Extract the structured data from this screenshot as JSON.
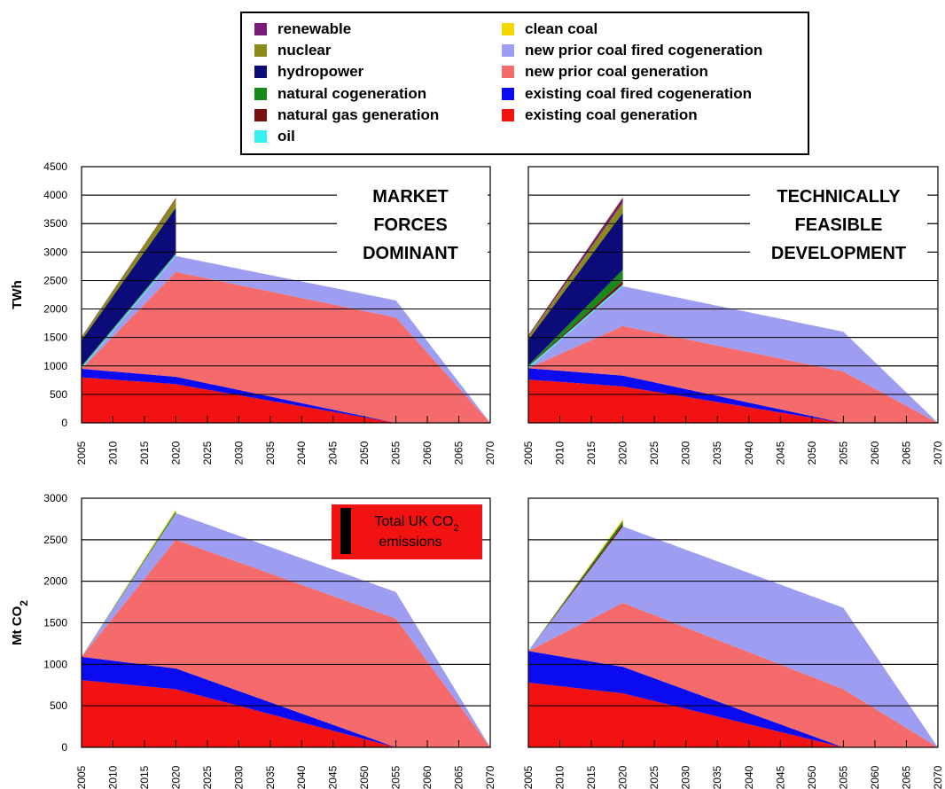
{
  "colors": {
    "renewable": "#7a1a7a",
    "nuclear": "#8b8b1a",
    "hydropower": "#0b0b7a",
    "natural_cogeneration": "#178a17",
    "natural_gas_generation": "#7a1010",
    "oil": "#36f2f2",
    "clean_coal": "#f5d700",
    "new_prior_coal_fired_cogeneration": "#9d9df2",
    "new_prior_coal_generation": "#f56b6b",
    "existing_coal_fired_cogeneration": "#0b0bf2",
    "existing_coal_generation": "#f21212",
    "total_emissions_marker": "#000000",
    "annotation_box": "#f21212"
  },
  "legend": {
    "left": [
      {
        "key": "renewable",
        "label": "renewable"
      },
      {
        "key": "nuclear",
        "label": "nuclear"
      },
      {
        "key": "hydropower",
        "label": "hydropower"
      },
      {
        "key": "natural_cogeneration",
        "label": "natural cogeneration"
      },
      {
        "key": "natural_gas_generation",
        "label": "natural gas generation"
      },
      {
        "key": "oil",
        "label": "oil"
      }
    ],
    "right": [
      {
        "key": "clean_coal",
        "label": "clean coal"
      },
      {
        "key": "new_prior_coal_fired_cogeneration",
        "label": "new prior coal fired cogeneration"
      },
      {
        "key": "new_prior_coal_generation",
        "label": "new prior coal generation"
      },
      {
        "key": "existing_coal_fired_cogeneration",
        "label": "existing coal fired cogeneration"
      },
      {
        "key": "existing_coal_generation",
        "label": "existing coal generation"
      }
    ]
  },
  "annotations": {
    "market_lines": [
      "MARKET",
      "FORCES",
      "DOMINANT"
    ],
    "technical_lines": [
      "TECHNICALLY",
      "FEASIBLE",
      "DEVELOPMENT"
    ],
    "co2_box_line1": "Total UK CO",
    "co2_box_sub": "2",
    "co2_box_line2": "emissions"
  },
  "chart_data": [
    {
      "type": "area",
      "stacked": true,
      "panel": "market-forces-twh",
      "ylabel": "TWh",
      "ylim": [
        0,
        4500
      ],
      "yticks": [
        0,
        500,
        1000,
        1500,
        2000,
        2500,
        3000,
        3500,
        4000,
        4500
      ],
      "x": [
        2005,
        2010,
        2015,
        2020,
        2025,
        2030,
        2035,
        2040,
        2045,
        2050,
        2055,
        2060,
        2065,
        2070
      ],
      "series": [
        {
          "key": "existing_coal_generation",
          "x": [
            2005,
            2020,
            2055
          ],
          "values": [
            800,
            680,
            0
          ]
        },
        {
          "key": "existing_coal_fired_cogeneration",
          "x": [
            2005,
            2020,
            2055
          ],
          "values": [
            150,
            130,
            0
          ]
        },
        {
          "key": "new_prior_coal_generation",
          "x": [
            2005,
            2020,
            2055,
            2070
          ],
          "values": [
            0,
            1840,
            1850,
            0
          ]
        },
        {
          "key": "new_prior_coal_fired_cogeneration",
          "x": [
            2005,
            2020,
            2055,
            2070
          ],
          "values": [
            0,
            280,
            300,
            0
          ]
        },
        {
          "key": "oil",
          "x": [
            2005,
            2020
          ],
          "values": [
            30,
            30
          ]
        },
        {
          "key": "natural_gas_generation",
          "x": [
            2005,
            2020
          ],
          "values": [
            10,
            10
          ]
        },
        {
          "key": "natural_cogeneration",
          "x": [
            2005,
            2020
          ],
          "values": [
            10,
            10
          ]
        },
        {
          "key": "hydropower",
          "x": [
            2005,
            2020
          ],
          "values": [
            450,
            800
          ]
        },
        {
          "key": "nuclear",
          "x": [
            2005,
            2020
          ],
          "values": [
            50,
            150
          ]
        },
        {
          "key": "renewable",
          "x": [
            2005,
            2020
          ],
          "values": [
            10,
            20
          ]
        },
        {
          "key": "clean_coal",
          "x": [
            2005,
            2020
          ],
          "values": [
            0,
            10
          ]
        }
      ]
    },
    {
      "type": "area",
      "stacked": true,
      "panel": "technically-feasible-twh",
      "ylabel": "",
      "ylim": [
        0,
        4500
      ],
      "yticks": [],
      "x": [
        2005,
        2010,
        2015,
        2020,
        2025,
        2030,
        2035,
        2040,
        2045,
        2050,
        2055,
        2060,
        2065,
        2070
      ],
      "series": [
        {
          "key": "existing_coal_generation",
          "x": [
            2005,
            2020,
            2055
          ],
          "values": [
            760,
            640,
            0
          ]
        },
        {
          "key": "existing_coal_fired_cogeneration",
          "x": [
            2005,
            2020,
            2055
          ],
          "values": [
            200,
            190,
            0
          ]
        },
        {
          "key": "new_prior_coal_generation",
          "x": [
            2005,
            2020,
            2055,
            2070
          ],
          "values": [
            0,
            870,
            900,
            0
          ]
        },
        {
          "key": "new_prior_coal_fired_cogeneration",
          "x": [
            2005,
            2020,
            2055,
            2070
          ],
          "values": [
            0,
            700,
            700,
            0
          ]
        },
        {
          "key": "oil",
          "x": [
            2005,
            2020
          ],
          "values": [
            30,
            30
          ]
        },
        {
          "key": "natural_gas_generation",
          "x": [
            2005,
            2020
          ],
          "values": [
            10,
            60
          ]
        },
        {
          "key": "natural_cogeneration",
          "x": [
            2005,
            2020
          ],
          "values": [
            10,
            200
          ]
        },
        {
          "key": "hydropower",
          "x": [
            2005,
            2020
          ],
          "values": [
            450,
            1000
          ]
        },
        {
          "key": "nuclear",
          "x": [
            2005,
            2020
          ],
          "values": [
            60,
            180
          ]
        },
        {
          "key": "renewable",
          "x": [
            2005,
            2020
          ],
          "values": [
            20,
            90
          ]
        },
        {
          "key": "clean_coal",
          "x": [
            2005,
            2020
          ],
          "values": [
            0,
            10
          ]
        }
      ]
    },
    {
      "type": "area",
      "stacked": true,
      "panel": "market-forces-co2",
      "ylabel": "Mt CO",
      "ylabel_sub": "2",
      "ylim": [
        0,
        3000
      ],
      "yticks": [
        0,
        500,
        1000,
        1500,
        2000,
        2500,
        3000
      ],
      "x": [
        2005,
        2010,
        2015,
        2020,
        2025,
        2030,
        2035,
        2040,
        2045,
        2050,
        2055,
        2060,
        2065,
        2070
      ],
      "series": [
        {
          "key": "existing_coal_generation",
          "x": [
            2005,
            2020,
            2055
          ],
          "values": [
            810,
            700,
            0
          ]
        },
        {
          "key": "existing_coal_fired_cogeneration",
          "x": [
            2005,
            2020,
            2055
          ],
          "values": [
            280,
            250,
            0
          ]
        },
        {
          "key": "new_prior_coal_generation",
          "x": [
            2005,
            2020,
            2055,
            2070
          ],
          "values": [
            0,
            1550,
            1550,
            0
          ]
        },
        {
          "key": "new_prior_coal_fired_cogeneration",
          "x": [
            2005,
            2020,
            2055,
            2070
          ],
          "values": [
            0,
            320,
            320,
            0
          ]
        },
        {
          "key": "natural_cogeneration",
          "x": [
            2005,
            2020
          ],
          "values": [
            0,
            25
          ]
        },
        {
          "key": "clean_coal",
          "x": [
            2005,
            2020
          ],
          "values": [
            0,
            20
          ]
        }
      ]
    },
    {
      "type": "area",
      "stacked": true,
      "panel": "technically-feasible-co2",
      "ylabel": "",
      "ylim": [
        0,
        3000
      ],
      "yticks": [],
      "x": [
        2005,
        2010,
        2015,
        2020,
        2025,
        2030,
        2035,
        2040,
        2045,
        2050,
        2055,
        2060,
        2065,
        2070
      ],
      "series": [
        {
          "key": "existing_coal_generation",
          "x": [
            2005,
            2020,
            2055
          ],
          "values": [
            780,
            650,
            0
          ]
        },
        {
          "key": "existing_coal_fired_cogeneration",
          "x": [
            2005,
            2020,
            2055
          ],
          "values": [
            380,
            320,
            0
          ]
        },
        {
          "key": "new_prior_coal_generation",
          "x": [
            2005,
            2020,
            2055,
            2070
          ],
          "values": [
            0,
            770,
            700,
            0
          ]
        },
        {
          "key": "new_prior_coal_fired_cogeneration",
          "x": [
            2005,
            2020,
            2055,
            2070
          ],
          "values": [
            0,
            920,
            980,
            0
          ]
        },
        {
          "key": "natural_gas_generation",
          "x": [
            2005,
            2020
          ],
          "values": [
            0,
            30
          ]
        },
        {
          "key": "natural_cogeneration",
          "x": [
            2005,
            2020
          ],
          "values": [
            0,
            40
          ]
        },
        {
          "key": "clean_coal",
          "x": [
            2005,
            2020
          ],
          "values": [
            0,
            20
          ]
        }
      ]
    }
  ]
}
